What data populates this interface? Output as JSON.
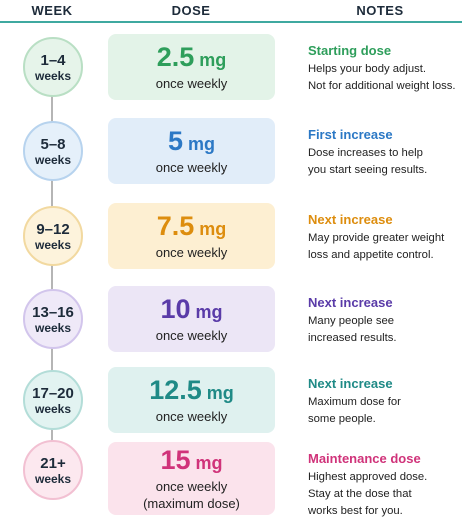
{
  "header": {
    "week": "WEEK",
    "dose": "DOSE",
    "notes": "NOTES"
  },
  "rows": [
    {
      "week": "1–4",
      "week_unit": "weeks",
      "dose": "2.5",
      "unit": "mg",
      "frequency": "once weekly",
      "note_title": "Starting dose",
      "note_lines": [
        "Helps your body adjust.",
        "Not for additional weight loss."
      ]
    },
    {
      "week": "5–8",
      "week_unit": "weeks",
      "dose": "5",
      "unit": "mg",
      "frequency": "once weekly",
      "note_title": "First increase",
      "note_lines": [
        "Dose increases to help",
        "you start seeing results."
      ]
    },
    {
      "week": "9–12",
      "week_unit": "weeks",
      "dose": "7.5",
      "unit": "mg",
      "frequency": "once weekly",
      "note_title": "Next increase",
      "note_lines": [
        "May provide greater weight",
        "loss and appetite control."
      ]
    },
    {
      "week": "13–16",
      "week_unit": "weeks",
      "dose": "10",
      "unit": "mg",
      "frequency": "once weekly",
      "note_title": "Next increase",
      "note_lines": [
        "Many people see",
        "increased results."
      ]
    },
    {
      "week": "17–20",
      "week_unit": "weeks",
      "dose": "12.5",
      "unit": "mg",
      "frequency": "once weekly",
      "note_title": "Next increase",
      "note_lines": [
        "Maximum dose for",
        "some people."
      ]
    },
    {
      "week": "21+",
      "week_unit": "weeks",
      "dose": "15",
      "unit": "mg",
      "frequency": "once weekly",
      "extra": "(maximum dose)",
      "note_title": "Maintenance dose",
      "note_lines": [
        "Highest approved dose.",
        "Stay at the dose that",
        "works best for you."
      ]
    }
  ]
}
